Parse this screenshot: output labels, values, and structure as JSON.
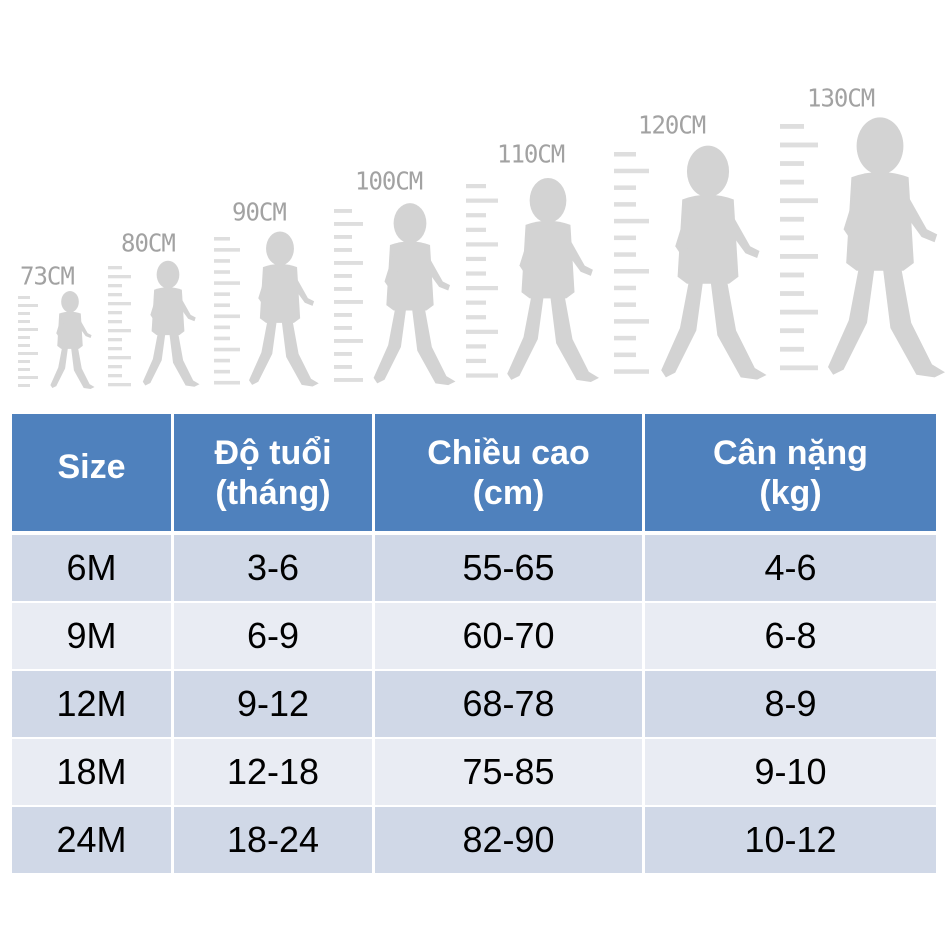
{
  "heights": [
    "73CM",
    "80CM",
    "90CM",
    "100CM",
    "110CM",
    "120CM",
    "130CM"
  ],
  "table": {
    "headers": [
      {
        "line1": "Size",
        "line2": ""
      },
      {
        "line1": "Độ tuổi",
        "line2": "(tháng)"
      },
      {
        "line1": "Chiều cao",
        "line2": "(cm)"
      },
      {
        "line1": "Cân nặng",
        "line2": "(kg)"
      }
    ],
    "rows": [
      [
        "6M",
        "3-6",
        "55-65",
        "4-6"
      ],
      [
        "9M",
        "6-9",
        "60-70",
        "6-8"
      ],
      [
        "12M",
        "9-12",
        "68-78",
        "8-9"
      ],
      [
        "18M",
        "12-18",
        "75-85",
        "9-10"
      ],
      [
        "24M",
        "18-24",
        "82-90",
        "10-12"
      ]
    ]
  },
  "colors": {
    "header_bg": "#4f81bd",
    "row_odd": "#d0d8e7",
    "row_even": "#e9ecf3",
    "silhouette": "#d3d3d3"
  },
  "icons": [
    "child-silhouette-icon",
    "height-ruler-icon"
  ]
}
